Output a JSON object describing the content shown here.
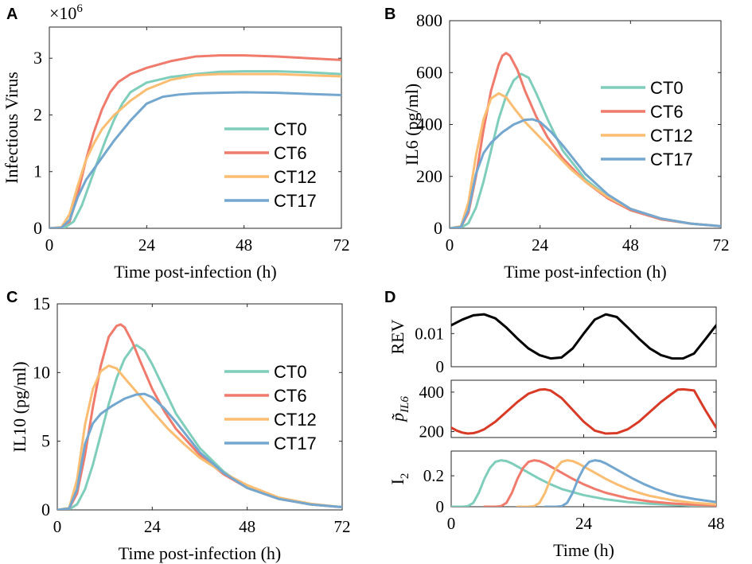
{
  "colors": {
    "CT0": "#7fcdbb",
    "CT6": "#f07a6b",
    "CT12": "#fbbd72",
    "CT17": "#74a7cf",
    "REV": "#000000",
    "pIL6": "#d83a26"
  },
  "chart_data": [
    {
      "panel": "A",
      "type": "line",
      "xlabel": "Time post-infection (h)",
      "ylabel": "Infectious Virus",
      "yscale_label": "×10",
      "yscale_exp": "6",
      "xlim": [
        0,
        72
      ],
      "ylim": [
        0,
        3.55
      ],
      "xticks": [
        0,
        24,
        48,
        72
      ],
      "yticks": [
        0,
        1,
        2,
        3
      ],
      "legend": "lower-right",
      "series": [
        {
          "name": "CT0",
          "color_key": "CT0",
          "x": [
            0,
            4,
            6,
            8,
            10,
            12,
            14,
            16,
            18,
            20,
            24,
            30,
            36,
            42,
            48,
            56,
            64,
            72
          ],
          "y": [
            0,
            0.02,
            0.12,
            0.4,
            0.8,
            1.2,
            1.58,
            1.92,
            2.2,
            2.4,
            2.57,
            2.67,
            2.72,
            2.76,
            2.77,
            2.77,
            2.75,
            2.72
          ]
        },
        {
          "name": "CT6",
          "color_key": "CT6",
          "x": [
            0,
            3,
            5,
            7,
            9,
            11,
            13,
            15,
            17,
            20,
            24,
            30,
            36,
            42,
            48,
            56,
            64,
            72
          ],
          "y": [
            0,
            0.02,
            0.12,
            0.6,
            1.2,
            1.7,
            2.1,
            2.4,
            2.58,
            2.72,
            2.83,
            2.95,
            3.03,
            3.05,
            3.05,
            3.03,
            3.0,
            2.97
          ]
        },
        {
          "name": "CT12",
          "color_key": "CT12",
          "x": [
            0,
            3,
            5,
            7,
            9,
            11,
            13,
            16,
            20,
            24,
            30,
            36,
            42,
            48,
            56,
            64,
            72
          ],
          "y": [
            0,
            0.02,
            0.25,
            0.75,
            1.2,
            1.5,
            1.75,
            2.0,
            2.25,
            2.45,
            2.62,
            2.7,
            2.72,
            2.72,
            2.72,
            2.7,
            2.68
          ]
        },
        {
          "name": "CT17",
          "color_key": "CT17",
          "x": [
            0,
            3,
            5,
            7,
            9,
            11,
            13,
            16,
            20,
            24,
            28,
            32,
            36,
            42,
            48,
            56,
            64,
            72
          ],
          "y": [
            0,
            0.01,
            0.15,
            0.55,
            0.85,
            1.05,
            1.25,
            1.55,
            1.9,
            2.2,
            2.32,
            2.36,
            2.38,
            2.39,
            2.4,
            2.39,
            2.37,
            2.35
          ]
        }
      ]
    },
    {
      "panel": "B",
      "type": "line",
      "xlabel": "Time post-infection (h)",
      "ylabel": "IL6 (pg/ml)",
      "xlim": [
        0,
        72
      ],
      "ylim": [
        0,
        800
      ],
      "xticks": [
        0,
        24,
        48,
        72
      ],
      "yticks": [
        0,
        200,
        400,
        600,
        800
      ],
      "legend": "right",
      "series": [
        {
          "name": "CT0",
          "color_key": "CT0",
          "x": [
            0,
            3,
            5,
            7,
            9,
            11,
            13,
            15,
            17,
            19,
            21,
            23,
            26,
            30,
            36,
            42,
            48,
            56,
            64,
            72
          ],
          "y": [
            0,
            2,
            20,
            80,
            180,
            300,
            420,
            510,
            570,
            595,
            580,
            520,
            420,
            300,
            190,
            120,
            70,
            35,
            18,
            8
          ]
        },
        {
          "name": "CT6",
          "color_key": "CT6",
          "x": [
            0,
            3,
            5,
            7,
            9,
            11,
            13,
            14,
            15,
            16,
            18,
            20,
            23,
            26,
            30,
            36,
            42,
            48,
            56,
            64,
            72
          ],
          "y": [
            0,
            5,
            60,
            200,
            380,
            530,
            630,
            665,
            675,
            665,
            610,
            530,
            430,
            350,
            270,
            180,
            115,
            70,
            35,
            18,
            8
          ]
        },
        {
          "name": "CT12",
          "color_key": "CT12",
          "x": [
            0,
            3,
            5,
            7,
            9,
            11,
            13,
            15,
            17,
            20,
            24,
            28,
            32,
            36,
            42,
            48,
            56,
            64,
            72
          ],
          "y": [
            0,
            8,
            100,
            280,
            420,
            500,
            520,
            505,
            465,
            410,
            350,
            290,
            230,
            180,
            120,
            75,
            38,
            18,
            8
          ]
        },
        {
          "name": "CT17",
          "color_key": "CT17",
          "x": [
            0,
            3,
            5,
            7,
            9,
            11,
            14,
            17,
            20,
            22,
            24,
            27,
            30,
            36,
            42,
            48,
            56,
            64,
            72
          ],
          "y": [
            0,
            5,
            70,
            210,
            290,
            330,
            370,
            400,
            418,
            420,
            410,
            370,
            320,
            210,
            130,
            75,
            38,
            18,
            8
          ]
        }
      ]
    },
    {
      "panel": "C",
      "type": "line",
      "xlabel": "Time post-infection (h)",
      "ylabel": "IL10 (pg/ml)",
      "xlim": [
        0,
        72
      ],
      "ylim": [
        0,
        15
      ],
      "xticks": [
        0,
        24,
        48,
        72
      ],
      "yticks": [
        0,
        5,
        10,
        15
      ],
      "legend": "right",
      "series": [
        {
          "name": "CT0",
          "color_key": "CT0",
          "x": [
            0,
            3,
            5,
            7,
            9,
            11,
            13,
            15,
            17,
            19,
            20,
            22,
            24,
            27,
            30,
            36,
            42,
            48,
            56,
            64,
            72
          ],
          "y": [
            0,
            0.05,
            0.4,
            1.5,
            3.3,
            5.5,
            7.7,
            9.6,
            11.0,
            11.8,
            12.0,
            11.6,
            10.6,
            8.8,
            7.0,
            4.5,
            2.8,
            1.6,
            0.8,
            0.4,
            0.2
          ]
        },
        {
          "name": "CT6",
          "color_key": "CT6",
          "x": [
            0,
            3,
            5,
            7,
            9,
            11,
            13,
            15,
            16,
            17,
            19,
            21,
            24,
            27,
            30,
            36,
            42,
            48,
            56,
            64,
            72
          ],
          "y": [
            0,
            0.1,
            1.2,
            4.0,
            7.5,
            10.5,
            12.6,
            13.4,
            13.5,
            13.3,
            12.2,
            10.8,
            8.8,
            7.2,
            5.9,
            4.0,
            2.6,
            1.6,
            0.8,
            0.4,
            0.2
          ]
        },
        {
          "name": "CT12",
          "color_key": "CT12",
          "x": [
            0,
            3,
            5,
            7,
            9,
            11,
            13,
            15,
            17,
            20,
            24,
            28,
            32,
            36,
            42,
            48,
            56,
            64,
            72
          ],
          "y": [
            0,
            0.15,
            2.2,
            6.2,
            8.8,
            10.1,
            10.5,
            10.3,
            9.6,
            8.6,
            7.2,
            5.9,
            4.8,
            3.8,
            2.7,
            1.8,
            0.9,
            0.45,
            0.2
          ]
        },
        {
          "name": "CT17",
          "color_key": "CT17",
          "x": [
            0,
            3,
            5,
            7,
            9,
            11,
            14,
            17,
            20,
            22,
            24,
            27,
            30,
            36,
            42,
            48,
            56,
            64,
            72
          ],
          "y": [
            0,
            0.1,
            1.5,
            4.8,
            6.3,
            7.0,
            7.6,
            8.1,
            8.4,
            8.45,
            8.2,
            7.4,
            6.4,
            4.2,
            2.7,
            1.6,
            0.8,
            0.4,
            0.2
          ]
        }
      ]
    },
    {
      "panel": "D",
      "type": "line",
      "xlabel": "Time (h)",
      "xlim": [
        0,
        48
      ],
      "xticks": [
        0,
        24,
        48
      ],
      "subplots": [
        {
          "ylabel": "REV",
          "ylim": [
            0,
            0.018
          ],
          "yticks": [
            0,
            0.01
          ],
          "ytick_labels": [
            "0",
            "0.01"
          ],
          "series": [
            {
              "name": "REV",
              "color_key": "REV",
              "x": [
                0,
                2,
                4,
                6,
                8,
                10,
                12,
                14,
                16,
                18,
                20,
                22,
                24,
                26,
                28,
                30,
                32,
                34,
                36,
                38,
                40,
                42,
                44,
                46,
                48
              ],
              "y": [
                0.0125,
                0.0142,
                0.0155,
                0.0158,
                0.0146,
                0.0118,
                0.0085,
                0.0055,
                0.0035,
                0.0025,
                0.0028,
                0.0055,
                0.01,
                0.0142,
                0.0158,
                0.015,
                0.0118,
                0.0085,
                0.0055,
                0.0035,
                0.0025,
                0.0025,
                0.004,
                0.0082,
                0.0125
              ]
            }
          ]
        },
        {
          "ylabel": "p̃",
          "ylabel_sub": "IL6",
          "ylim": [
            170,
            460
          ],
          "yticks": [
            200,
            400
          ],
          "series": [
            {
              "name": "pIL6",
              "color_key": "pIL6",
              "x": [
                0,
                1,
                2,
                3,
                4,
                5,
                6,
                8,
                10,
                12,
                14,
                16,
                17,
                18,
                20,
                22,
                24,
                26,
                28,
                30,
                32,
                34,
                36,
                38,
                40,
                41,
                42,
                44,
                46,
                48
              ],
              "y": [
                220,
                205,
                195,
                190,
                192,
                200,
                212,
                250,
                300,
                350,
                392,
                412,
                414,
                408,
                370,
                310,
                250,
                205,
                190,
                192,
                212,
                250,
                300,
                350,
                392,
                412,
                414,
                408,
                310,
                220
              ]
            }
          ]
        },
        {
          "ylabel": "I",
          "ylabel_sub": "2",
          "ylim": [
            0,
            0.36
          ],
          "yticks": [
            0,
            0.2
          ],
          "ytick_labels": [
            "0",
            "0.2"
          ],
          "series": [
            {
              "name": "CT0",
              "color_key": "CT0",
              "x": [
                0,
                2,
                3,
                4,
                5,
                6,
                7,
                8,
                9,
                10,
                11,
                12,
                14,
                16,
                18,
                20,
                24,
                28,
                32,
                36,
                40,
                44,
                48
              ],
              "y": [
                0,
                0,
                0.003,
                0.025,
                0.09,
                0.18,
                0.25,
                0.29,
                0.3,
                0.295,
                0.28,
                0.26,
                0.22,
                0.18,
                0.145,
                0.115,
                0.075,
                0.048,
                0.03,
                0.019,
                0.012,
                0.007,
                0.004
              ]
            },
            {
              "name": "CT6",
              "color_key": "CT6",
              "x": [
                6,
                8,
                9,
                10,
                11,
                12,
                13,
                14,
                15,
                16,
                17,
                18,
                20,
                22,
                24,
                26,
                28,
                32,
                36,
                40,
                44,
                48
              ],
              "y": [
                0,
                0,
                0.003,
                0.025,
                0.09,
                0.18,
                0.25,
                0.29,
                0.3,
                0.295,
                0.28,
                0.26,
                0.22,
                0.18,
                0.145,
                0.115,
                0.09,
                0.055,
                0.034,
                0.021,
                0.013,
                0.008
              ]
            },
            {
              "name": "CT12",
              "color_key": "CT12",
              "x": [
                12,
                14,
                15,
                16,
                17,
                18,
                19,
                20,
                21,
                22,
                23,
                24,
                26,
                28,
                30,
                32,
                34,
                36,
                40,
                44,
                48
              ],
              "y": [
                0,
                0,
                0.003,
                0.025,
                0.09,
                0.18,
                0.25,
                0.29,
                0.3,
                0.295,
                0.28,
                0.26,
                0.22,
                0.18,
                0.145,
                0.115,
                0.09,
                0.07,
                0.042,
                0.025,
                0.015
              ]
            },
            {
              "name": "CT17",
              "color_key": "CT17",
              "x": [
                17,
                19,
                20,
                21,
                22,
                23,
                24,
                25,
                26,
                27,
                28,
                29,
                31,
                33,
                35,
                37,
                39,
                41,
                44,
                48
              ],
              "y": [
                0,
                0,
                0.003,
                0.025,
                0.09,
                0.18,
                0.25,
                0.29,
                0.3,
                0.295,
                0.28,
                0.26,
                0.22,
                0.18,
                0.145,
                0.115,
                0.09,
                0.07,
                0.05,
                0.03
              ]
            }
          ]
        }
      ]
    }
  ]
}
